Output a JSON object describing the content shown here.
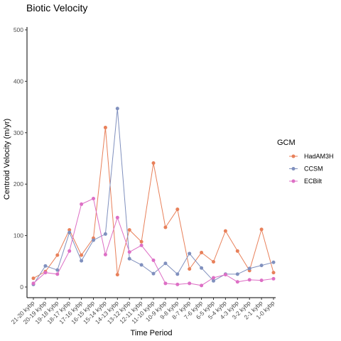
{
  "chart_data": {
    "type": "line",
    "title": "Biotic Velocity",
    "xlabel": "Time Period",
    "ylabel": "Centroid Velocity (m/yr)",
    "ylim": [
      0,
      500
    ],
    "yticks": [
      0,
      100,
      200,
      300,
      400,
      500
    ],
    "grid": false,
    "legend": {
      "title": "GCM",
      "placement": "right"
    },
    "categories": [
      "21-20 kybp",
      "20-19 kybp",
      "19-18 kybp",
      "18-17 kybp",
      "17-16 kybp",
      "16-15 kybp",
      "15-14 kybp",
      "14-13 kybp",
      "13-12 kybp",
      "12-11 kybp",
      "11-10 kybp",
      "10-9 kybp",
      "9-8 kybp",
      "8-7 kybp",
      "7-6 kybp",
      "6-5 kybp",
      "5-4 kybp",
      "4-3 kybp",
      "3-2 kybp",
      "2-1 kybp",
      "1-0 kybp"
    ],
    "series": [
      {
        "name": "HadAM3H",
        "color": "#E8805A",
        "values": [
          17,
          30,
          62,
          111,
          62,
          95,
          310,
          24,
          111,
          88,
          241,
          116,
          151,
          35,
          67,
          49,
          109,
          70,
          32,
          112,
          28
        ]
      },
      {
        "name": "CCSM",
        "color": "#8090BE",
        "values": [
          5,
          41,
          33,
          106,
          51,
          91,
          103,
          347,
          55,
          43,
          26,
          46,
          25,
          65,
          37,
          12,
          25,
          25,
          36,
          42,
          48
        ]
      },
      {
        "name": "ECBilt",
        "color": "#DD6FC5",
        "values": [
          7,
          28,
          25,
          70,
          161,
          172,
          63,
          135,
          68,
          81,
          52,
          7,
          5,
          7,
          3,
          18,
          24,
          10,
          14,
          13,
          16
        ]
      }
    ]
  }
}
